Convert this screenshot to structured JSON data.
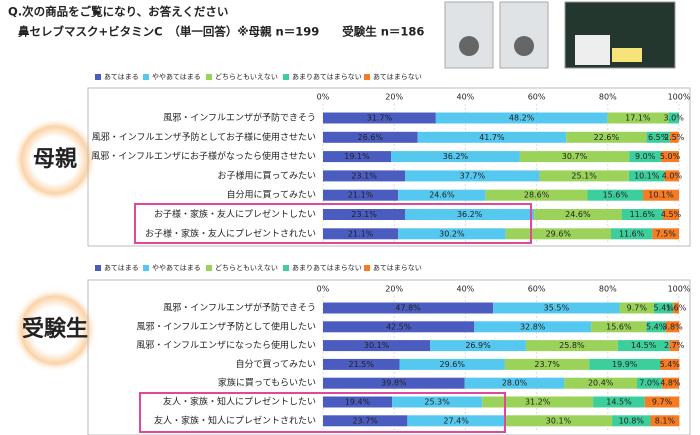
{
  "title_lines": [
    "Q.次の商品をご覧になり、お答えください",
    "鼻セレブマスク+ビタミンC　（単一回答）※母親 n＝199　　受験生 n＝186"
  ],
  "chart_data": [
    {
      "type": "bar",
      "orientation": "horizontal",
      "stacked": true,
      "group_label": "母親",
      "categories": [
        "風邪・インフルエンザが予防できそう",
        "風邪・インフルエンザ予防としてお子様に使用させたい",
        "風邪・インフルエンザにお子様がなったら使用させたい",
        "お子様用に買ってみたい",
        "自分用に買ってみたい",
        "お子様・家族・友人にプレゼントしたい",
        "お子様・家族・友人にプレゼントされたい"
      ],
      "series": [
        {
          "name": "あてはまる",
          "color": "#4a5cc0",
          "values": [
            31.7,
            26.6,
            19.1,
            23.1,
            21.1,
            23.1,
            21.1
          ],
          "value_labels": [
            "31.7%",
            "26.6%",
            "19.1%",
            "23.1%",
            "21.1%",
            "23.1%",
            "21.1%"
          ]
        },
        {
          "name": "ややあてはまる",
          "color": "#55c8ef",
          "values": [
            48.2,
            41.7,
            36.2,
            37.7,
            24.6,
            36.2,
            30.2
          ],
          "value_labels": [
            "48.2%",
            "41.7%",
            "36.2%",
            "37.7%",
            "24.6%",
            "36.2%",
            "30.2%"
          ]
        },
        {
          "name": "どちらともいえない",
          "color": "#9bd35a",
          "values": [
            17.1,
            22.6,
            30.7,
            25.1,
            28.6,
            24.6,
            29.6
          ],
          "value_labels": [
            "17.1%",
            "22.6%",
            "30.7%",
            "25.1%",
            "28.6%",
            "24.6%",
            "29.6%"
          ]
        },
        {
          "name": "あまりあてはまらない",
          "color": "#3ccf9c",
          "values": [
            3.0,
            6.5,
            9.0,
            10.1,
            15.6,
            11.6,
            11.6
          ],
          "value_labels": [
            "3.0%",
            "6.5%",
            "9.0%",
            "10.1%",
            "15.6%",
            "11.6%",
            "11.6%"
          ]
        },
        {
          "name": "あてはまらない",
          "color": "#f57c23",
          "values": [
            0,
            2.5,
            5.0,
            4.0,
            10.1,
            4.5,
            7.5
          ],
          "value_labels": [
            null,
            "2.5%",
            "5.0%",
            "4.0%",
            "10.1%",
            "4.5%",
            "7.5%"
          ]
        }
      ],
      "xlim": [
        0,
        100
      ],
      "xticks": [
        {
          "value": 0,
          "label": "0%"
        },
        {
          "value": 20,
          "label": "20%"
        },
        {
          "value": 40,
          "label": "40%"
        },
        {
          "value": 60,
          "label": "60%"
        },
        {
          "value": 80,
          "label": "80%"
        },
        {
          "value": 100,
          "label": "100%"
        }
      ],
      "legend": "top",
      "grid": true
    },
    {
      "type": "bar",
      "orientation": "horizontal",
      "stacked": true,
      "group_label": "受験生",
      "categories": [
        "風邪・インフルエンザが予防できそう",
        "風邪・インフルエンザ予防として使用したい",
        "風邪・インフルエンザになったら使用したい",
        "自分で買ってみたい",
        "家族に買ってもらいたい",
        "友人・家族・知人にプレゼントしたい",
        "友人・家族・知人にプレゼントされたい"
      ],
      "series": [
        {
          "name": "あてはまる",
          "color": "#4a5cc0",
          "values": [
            47.8,
            42.5,
            30.1,
            21.5,
            39.8,
            19.4,
            23.7
          ],
          "value_labels": [
            "47.8%",
            "42.5%",
            "30.1%",
            "21.5%",
            "39.8%",
            "19.4%",
            "23.7%"
          ]
        },
        {
          "name": "ややあてはまる",
          "color": "#55c8ef",
          "values": [
            35.5,
            32.8,
            26.9,
            29.6,
            28.0,
            25.3,
            27.4
          ],
          "value_labels": [
            "35.5%",
            "32.8%",
            "26.9%",
            "29.6%",
            "28.0%",
            "25.3%",
            "27.4%"
          ]
        },
        {
          "name": "どちらともいえない",
          "color": "#9bd35a",
          "values": [
            9.7,
            15.6,
            25.8,
            23.7,
            20.4,
            31.2,
            30.1
          ],
          "value_labels": [
            "9.7%",
            "15.6%",
            "25.8%",
            "23.7%",
            "20.4%",
            "31.2%",
            "30.1%"
          ]
        },
        {
          "name": "あまりあてはまらない",
          "color": "#3ccf9c",
          "values": [
            5.4,
            5.4,
            14.5,
            19.9,
            7.0,
            14.5,
            10.8
          ],
          "value_labels": [
            "5.4%",
            "5.4%",
            "14.5%",
            "19.9%",
            "7.0%",
            "14.5%",
            "10.8%"
          ]
        },
        {
          "name": "あてはまらない",
          "color": "#f57c23",
          "values": [
            1.6,
            3.8,
            2.7,
            5.4,
            4.8,
            9.7,
            8.1
          ],
          "value_labels": [
            "1.6%",
            "3.8%",
            "2.7%",
            "5.4%",
            "4.8%",
            "9.7%",
            "8.1%"
          ]
        }
      ],
      "xlim": [
        0,
        100
      ],
      "xticks": [
        {
          "value": 0,
          "label": "0%"
        },
        {
          "value": 20,
          "label": "20%"
        },
        {
          "value": 40,
          "label": "40%"
        },
        {
          "value": 60,
          "label": "60%"
        },
        {
          "value": 80,
          "label": "80%"
        },
        {
          "value": 100,
          "label": "100%"
        }
      ],
      "legend": "top",
      "grid": true
    }
  ]
}
